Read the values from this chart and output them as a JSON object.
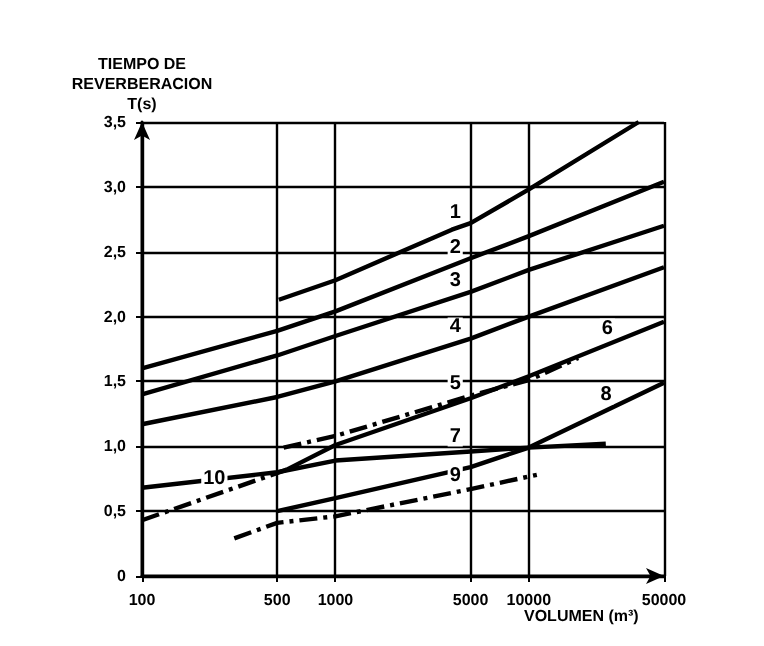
{
  "chart_data": {
    "type": "line",
    "xlabel": "VOLUMEN (m³)",
    "ylabel": "TIEMPO DE\nREVERBERACION\nT(s)",
    "log": "x",
    "xlim": [
      100,
      50000
    ],
    "xticks": [
      100,
      500,
      1000,
      5000,
      10000,
      50000
    ],
    "ylim": [
      0,
      3.5
    ],
    "yticks": [
      0,
      {
        "value": 0.5,
        "label": "0,5"
      },
      {
        "value": 1,
        "label": "1,0"
      },
      {
        "value": 1.5,
        "label": "1,5"
      },
      {
        "value": 2,
        "label": "2,0"
      },
      {
        "value": 2.5,
        "label": "2,5"
      },
      {
        "value": 3,
        "label": "3,0"
      },
      {
        "value": 3.5,
        "label": "3,5"
      }
    ],
    "grid": true,
    "legend": false,
    "marker": "none",
    "series": [
      {
        "name": "1",
        "color": "#000000",
        "x": [
          510,
          1000,
          4000,
          5000,
          10000,
          37000
        ],
        "values": [
          2.13,
          2.28,
          2.67,
          2.72,
          2.98,
          3.5
        ]
      },
      {
        "name": "2",
        "color": "#000000",
        "x": [
          100,
          500,
          1000,
          5000,
          10000,
          50000
        ],
        "values": [
          1.6,
          1.89,
          2.04,
          2.45,
          2.62,
          3.04
        ]
      },
      {
        "name": "3",
        "color": "#000000",
        "x": [
          100,
          500,
          1000,
          5000,
          10000,
          50000
        ],
        "values": [
          1.4,
          1.7,
          1.85,
          2.19,
          2.36,
          2.7
        ]
      },
      {
        "name": "4",
        "color": "#000000",
        "x": [
          100,
          500,
          1000,
          5000,
          10000,
          50000
        ],
        "values": [
          1.17,
          1.38,
          1.5,
          1.83,
          2.0,
          2.38
        ]
      },
      {
        "name": "5",
        "color": "#000000",
        "line_style": "dashed",
        "x": [
          540,
          1000,
          5000,
          10000,
          18000
        ],
        "values": [
          0.99,
          1.08,
          1.39,
          1.51,
          1.68
        ]
      },
      {
        "name": "6",
        "color": "#000000",
        "x": [
          560,
          1000,
          5000,
          10000,
          50000
        ],
        "values": [
          0.82,
          1.01,
          1.37,
          1.54,
          1.96
        ]
      },
      {
        "name": "7",
        "color": "#000000",
        "x": [
          100,
          500,
          1000,
          5000,
          10000,
          25000
        ],
        "values": [
          0.68,
          0.8,
          0.89,
          0.96,
          0.99,
          1.02
        ]
      },
      {
        "name": "8",
        "color": "#000000",
        "x": [
          500,
          1000,
          5000,
          10000,
          50000
        ],
        "values": [
          0.5,
          0.6,
          0.84,
          0.99,
          1.49
        ]
      },
      {
        "name": "9",
        "color": "#000000",
        "line_style": "dashed",
        "x": [
          300,
          500,
          1000,
          5000,
          11000
        ],
        "values": [
          0.29,
          0.41,
          0.46,
          0.67,
          0.78
        ]
      },
      {
        "name": "10",
        "color": "#000000",
        "line_style": "dashed",
        "x": [
          100,
          560
        ],
        "values": [
          0.43,
          0.82
        ]
      }
    ]
  }
}
